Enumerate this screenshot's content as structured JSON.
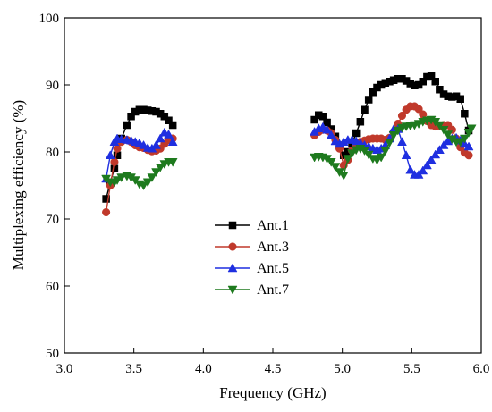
{
  "chart_data": {
    "type": "line",
    "title": "",
    "xlabel": "Frequency (GHz)",
    "ylabel": "Multiplexing efficiency (%)",
    "xlim": [
      3.0,
      6.0
    ],
    "ylim": [
      50,
      100
    ],
    "xticks": [
      "3.0",
      "3.5",
      "4.0",
      "4.5",
      "5.0",
      "5.5",
      "6.0"
    ],
    "xtick_values": [
      3.0,
      3.5,
      4.0,
      4.5,
      5.0,
      5.5,
      6.0
    ],
    "yticks": [
      "50",
      "60",
      "70",
      "80",
      "90",
      "100"
    ],
    "ytick_values": [
      50,
      60,
      70,
      80,
      90,
      100
    ],
    "grid": false,
    "legend_position": "center-left",
    "series": [
      {
        "name": "Ant.1",
        "color": "#000000",
        "marker": "square",
        "segments": [
          [
            [
              3.3,
              73.0
            ],
            [
              3.33,
              75.5
            ],
            [
              3.36,
              77.5
            ],
            [
              3.38,
              79.5
            ],
            [
              3.41,
              82.0
            ],
            [
              3.45,
              84.0
            ],
            [
              3.48,
              85.3
            ],
            [
              3.51,
              86.0
            ],
            [
              3.54,
              86.3
            ],
            [
              3.57,
              86.3
            ],
            [
              3.6,
              86.2
            ],
            [
              3.63,
              86.1
            ],
            [
              3.66,
              86.0
            ],
            [
              3.69,
              85.7
            ],
            [
              3.72,
              85.3
            ],
            [
              3.75,
              84.7
            ],
            [
              3.78,
              84.0
            ]
          ],
          [
            [
              4.8,
              84.8
            ],
            [
              4.83,
              85.5
            ],
            [
              4.86,
              85.3
            ],
            [
              4.89,
              84.4
            ],
            [
              4.92,
              83.4
            ],
            [
              4.95,
              82.3
            ],
            [
              4.98,
              81.0
            ],
            [
              5.01,
              79.5
            ],
            [
              5.04,
              80.0
            ],
            [
              5.07,
              81.2
            ],
            [
              5.1,
              82.8
            ],
            [
              5.13,
              84.5
            ],
            [
              5.16,
              86.3
            ],
            [
              5.19,
              87.8
            ],
            [
              5.22,
              88.9
            ],
            [
              5.25,
              89.6
            ],
            [
              5.28,
              90.0
            ],
            [
              5.31,
              90.3
            ],
            [
              5.34,
              90.5
            ],
            [
              5.37,
              90.7
            ],
            [
              5.4,
              90.9
            ],
            [
              5.43,
              90.9
            ],
            [
              5.46,
              90.6
            ],
            [
              5.49,
              90.2
            ],
            [
              5.52,
              89.9
            ],
            [
              5.55,
              90.0
            ],
            [
              5.58,
              90.5
            ],
            [
              5.61,
              91.2
            ],
            [
              5.64,
              91.3
            ],
            [
              5.67,
              90.5
            ],
            [
              5.7,
              89.3
            ],
            [
              5.73,
              88.6
            ],
            [
              5.76,
              88.3
            ],
            [
              5.79,
              88.2
            ],
            [
              5.82,
              88.3
            ],
            [
              5.85,
              87.9
            ],
            [
              5.88,
              85.7
            ],
            [
              5.91,
              83.2
            ]
          ]
        ]
      },
      {
        "name": "Ant.3",
        "color": "#c0392b",
        "marker": "circle",
        "segments": [
          [
            [
              3.3,
              71.0
            ],
            [
              3.33,
              75.0
            ],
            [
              3.36,
              78.5
            ],
            [
              3.38,
              80.5
            ],
            [
              3.41,
              81.5
            ],
            [
              3.45,
              81.8
            ],
            [
              3.48,
              81.5
            ],
            [
              3.51,
              81.0
            ],
            [
              3.54,
              80.7
            ],
            [
              3.57,
              80.6
            ],
            [
              3.6,
              80.3
            ],
            [
              3.63,
              80.1
            ],
            [
              3.66,
              80.2
            ],
            [
              3.69,
              80.5
            ],
            [
              3.72,
              81.2
            ],
            [
              3.75,
              81.8
            ],
            [
              3.78,
              82.0
            ]
          ],
          [
            [
              4.8,
              82.5
            ],
            [
              4.83,
              83.0
            ],
            [
              4.86,
              83.3
            ],
            [
              4.89,
              83.2
            ],
            [
              4.92,
              82.8
            ],
            [
              4.95,
              81.8
            ],
            [
              4.98,
              80.5
            ],
            [
              5.01,
              78.0
            ],
            [
              5.04,
              78.8
            ],
            [
              5.07,
              80.2
            ],
            [
              5.1,
              81.0
            ],
            [
              5.13,
              81.5
            ],
            [
              5.16,
              81.7
            ],
            [
              5.19,
              81.9
            ],
            [
              5.22,
              82.0
            ],
            [
              5.25,
              82.0
            ],
            [
              5.28,
              82.0
            ],
            [
              5.31,
              81.8
            ],
            [
              5.34,
              82.1
            ],
            [
              5.37,
              83.0
            ],
            [
              5.4,
              84.2
            ],
            [
              5.43,
              85.4
            ],
            [
              5.46,
              86.3
            ],
            [
              5.49,
              86.8
            ],
            [
              5.52,
              86.8
            ],
            [
              5.55,
              86.4
            ],
            [
              5.58,
              85.6
            ],
            [
              5.61,
              84.6
            ],
            [
              5.64,
              84.0
            ],
            [
              5.67,
              83.8
            ],
            [
              5.7,
              83.9
            ],
            [
              5.73,
              84.0
            ],
            [
              5.76,
              84.0
            ],
            [
              5.79,
              83.3
            ],
            [
              5.82,
              82.0
            ],
            [
              5.85,
              80.7
            ],
            [
              5.88,
              79.9
            ],
            [
              5.91,
              79.5
            ]
          ]
        ]
      },
      {
        "name": "Ant.5",
        "color": "#1f2fe0",
        "marker": "triangle-up",
        "segments": [
          [
            [
              3.3,
              76.0
            ],
            [
              3.33,
              79.5
            ],
            [
              3.36,
              81.5
            ],
            [
              3.38,
              82.0
            ],
            [
              3.41,
              81.9
            ],
            [
              3.45,
              81.8
            ],
            [
              3.48,
              81.7
            ],
            [
              3.51,
              81.5
            ],
            [
              3.54,
              81.3
            ],
            [
              3.57,
              81.0
            ],
            [
              3.6,
              80.6
            ],
            [
              3.63,
              80.5
            ],
            [
              3.66,
              81.0
            ],
            [
              3.69,
              82.0
            ],
            [
              3.72,
              82.9
            ],
            [
              3.75,
              82.6
            ],
            [
              3.78,
              81.5
            ]
          ],
          [
            [
              4.8,
              83.0
            ],
            [
              4.83,
              83.5
            ],
            [
              4.86,
              83.7
            ],
            [
              4.89,
              83.3
            ],
            [
              4.92,
              82.5
            ],
            [
              4.95,
              81.6
            ],
            [
              4.98,
              81.2
            ],
            [
              5.01,
              81.5
            ],
            [
              5.04,
              81.8
            ],
            [
              5.07,
              81.8
            ],
            [
              5.1,
              81.6
            ],
            [
              5.13,
              81.3
            ],
            [
              5.16,
              81.0
            ],
            [
              5.19,
              80.8
            ],
            [
              5.22,
              80.5
            ],
            [
              5.25,
              80.3
            ],
            [
              5.28,
              80.5
            ],
            [
              5.31,
              81.0
            ],
            [
              5.34,
              82.0
            ],
            [
              5.37,
              83.4
            ],
            [
              5.4,
              83.4
            ],
            [
              5.43,
              81.5
            ],
            [
              5.46,
              79.5
            ],
            [
              5.49,
              77.3
            ],
            [
              5.52,
              76.6
            ],
            [
              5.55,
              76.6
            ],
            [
              5.58,
              77.2
            ],
            [
              5.61,
              78.0
            ],
            [
              5.64,
              78.8
            ],
            [
              5.67,
              79.6
            ],
            [
              5.7,
              80.3
            ],
            [
              5.73,
              81.0
            ],
            [
              5.76,
              81.6
            ],
            [
              5.79,
              82.0
            ],
            [
              5.82,
              82.1
            ],
            [
              5.85,
              81.7
            ],
            [
              5.88,
              81.2
            ],
            [
              5.91,
              80.8
            ]
          ]
        ]
      },
      {
        "name": "Ant.7",
        "color": "#1e7a1e",
        "marker": "triangle-down",
        "segments": [
          [
            [
              3.3,
              76.0
            ],
            [
              3.33,
              75.5
            ],
            [
              3.36,
              75.5
            ],
            [
              3.38,
              75.8
            ],
            [
              3.41,
              76.2
            ],
            [
              3.45,
              76.4
            ],
            [
              3.48,
              76.2
            ],
            [
              3.51,
              75.8
            ],
            [
              3.54,
              75.2
            ],
            [
              3.57,
              75.0
            ],
            [
              3.6,
              75.5
            ],
            [
              3.63,
              76.2
            ],
            [
              3.66,
              77.0
            ],
            [
              3.69,
              77.7
            ],
            [
              3.72,
              78.2
            ],
            [
              3.75,
              78.5
            ],
            [
              3.78,
              78.5
            ]
          ],
          [
            [
              4.8,
              79.2
            ],
            [
              4.83,
              79.3
            ],
            [
              4.86,
              79.2
            ],
            [
              4.89,
              79.0
            ],
            [
              4.92,
              78.5
            ],
            [
              4.95,
              77.8
            ],
            [
              4.98,
              77.0
            ],
            [
              5.01,
              76.5
            ],
            [
              5.04,
              79.0
            ],
            [
              5.07,
              79.8
            ],
            [
              5.1,
              80.3
            ],
            [
              5.13,
              80.5
            ],
            [
              5.16,
              80.2
            ],
            [
              5.19,
              79.6
            ],
            [
              5.22,
              79.0
            ],
            [
              5.25,
              78.8
            ],
            [
              5.28,
              79.2
            ],
            [
              5.31,
              80.2
            ],
            [
              5.34,
              81.4
            ],
            [
              5.37,
              82.5
            ],
            [
              5.4,
              83.2
            ],
            [
              5.43,
              83.6
            ],
            [
              5.46,
              83.8
            ],
            [
              5.49,
              83.9
            ],
            [
              5.52,
              84.0
            ],
            [
              5.55,
              84.2
            ],
            [
              5.58,
              84.5
            ],
            [
              5.61,
              84.7
            ],
            [
              5.64,
              84.8
            ],
            [
              5.67,
              84.5
            ],
            [
              5.7,
              84.0
            ],
            [
              5.73,
              83.3
            ],
            [
              5.76,
              82.6
            ],
            [
              5.79,
              81.9
            ],
            [
              5.82,
              81.5
            ],
            [
              5.85,
              81.5
            ],
            [
              5.88,
              82.0
            ],
            [
              5.91,
              82.9
            ],
            [
              5.93,
              83.5
            ]
          ]
        ]
      }
    ]
  }
}
